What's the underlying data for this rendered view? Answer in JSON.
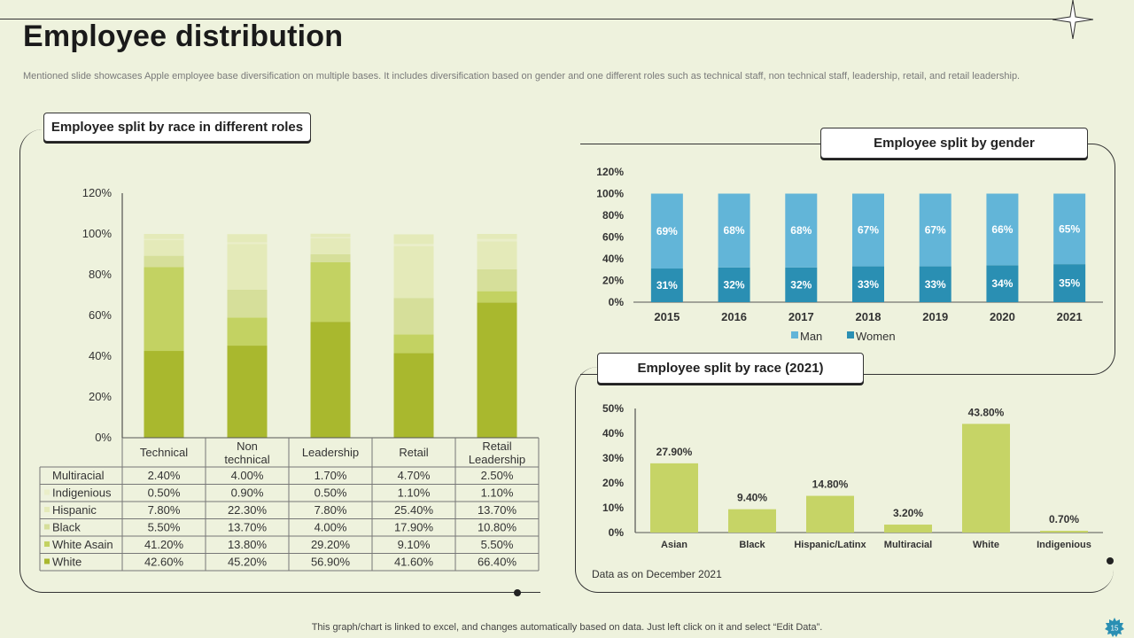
{
  "page": {
    "title": "Employee distribution",
    "subtitle": "Mentioned slide showcases Apple employee base diversification on multiple bases. It includes diversification based on gender and one different roles such as technical staff, non technical staff, leadership, retail, and retail leadership.",
    "footer": "This graph/chart is linked to excel,  and changes automatically based on data. Just left click on it and select “Edit Data”.",
    "page_number": "15",
    "note": "Data as on December 2021"
  },
  "colors": {
    "green_dark": "#a9b82e",
    "green_mid": "#c3d262",
    "green_light": "#d6df9a",
    "green_pale": "#e4eab9",
    "green_paler": "#eaeec9",
    "blue_light": "#62b5d8",
    "blue_dark": "#2a8fb3",
    "bar_race": "#c6d466"
  },
  "chart_data": [
    {
      "id": "race_roles",
      "type": "bar",
      "stacked": true,
      "title": "Employee split by race in different roles",
      "categories": [
        "Technical",
        "Non technical",
        "Leadership",
        "Retail",
        "Retail Leadership"
      ],
      "category_labels": [
        [
          "Technical"
        ],
        [
          "Non",
          "technical"
        ],
        [
          "Leadership"
        ],
        [
          "Retail"
        ],
        [
          "Retail",
          "Leadership"
        ]
      ],
      "series": [
        {
          "name": "White",
          "values": [
            42.6,
            45.2,
            56.9,
            41.6,
            66.4
          ],
          "labels": [
            "42.60%",
            "45.20%",
            "56.90%",
            "41.60%",
            "66.40%"
          ]
        },
        {
          "name": "White  Asain",
          "values": [
            41.2,
            13.8,
            29.2,
            9.1,
            5.5
          ],
          "labels": [
            "41.20%",
            "13.80%",
            "29.20%",
            "9.10%",
            "5.50%"
          ]
        },
        {
          "name": "Black",
          "values": [
            5.5,
            13.7,
            4.0,
            17.9,
            10.8
          ],
          "labels": [
            "5.50%",
            "13.70%",
            "4.00%",
            "17.90%",
            "10.80%"
          ]
        },
        {
          "name": "Hispanic",
          "values": [
            7.8,
            22.3,
            7.8,
            25.4,
            13.7
          ],
          "labels": [
            "7.80%",
            "22.30%",
            "7.80%",
            "25.40%",
            "13.70%"
          ]
        },
        {
          "name": "Indigenious",
          "values": [
            0.5,
            0.9,
            0.5,
            1.1,
            1.1
          ],
          "labels": [
            "0.50%",
            "0.90%",
            "0.50%",
            "1.10%",
            "1.10%"
          ]
        },
        {
          "name": "Multiracial",
          "values": [
            2.4,
            4.0,
            1.7,
            4.7,
            2.5
          ],
          "labels": [
            "2.40%",
            "4.00%",
            "1.70%",
            "4.70%",
            "2.50%"
          ]
        }
      ],
      "y_ticks": [
        "0%",
        "20%",
        "40%",
        "60%",
        "80%",
        "100%",
        "120%"
      ],
      "ylim": [
        0,
        120
      ]
    },
    {
      "id": "gender",
      "type": "bar",
      "stacked": true,
      "title": "Employee split by gender",
      "categories": [
        "2015",
        "2016",
        "2017",
        "2018",
        "2019",
        "2020",
        "2021"
      ],
      "series": [
        {
          "name": "Women",
          "values": [
            31,
            32,
            32,
            33,
            33,
            34,
            35
          ],
          "labels": [
            "31%",
            "32%",
            "32%",
            "33%",
            "33%",
            "34%",
            "35%"
          ]
        },
        {
          "name": "Man",
          "values": [
            69,
            68,
            68,
            67,
            67,
            66,
            65
          ],
          "labels": [
            "69%",
            "68%",
            "68%",
            "67%",
            "67%",
            "66%",
            "65%"
          ]
        }
      ],
      "legend": [
        "Man",
        "Women"
      ],
      "y_ticks": [
        "0%",
        "20%",
        "40%",
        "60%",
        "80%",
        "100%",
        "120%"
      ],
      "ylim": [
        0,
        120
      ]
    },
    {
      "id": "race_2021",
      "type": "bar",
      "title": "Employee split by race (2021)",
      "categories": [
        "Asian",
        "Black",
        "Hispanic/Latinx",
        "Multiracial",
        "White",
        "Indigenious"
      ],
      "values": [
        27.9,
        9.4,
        14.8,
        3.2,
        43.8,
        0.7
      ],
      "labels": [
        "27.90%",
        "9.40%",
        "14.80%",
        "3.20%",
        "43.80%",
        "0.70%"
      ],
      "y_ticks": [
        "0%",
        "10%",
        "20%",
        "30%",
        "40%",
        "50%"
      ],
      "ylim": [
        0,
        50
      ]
    }
  ]
}
